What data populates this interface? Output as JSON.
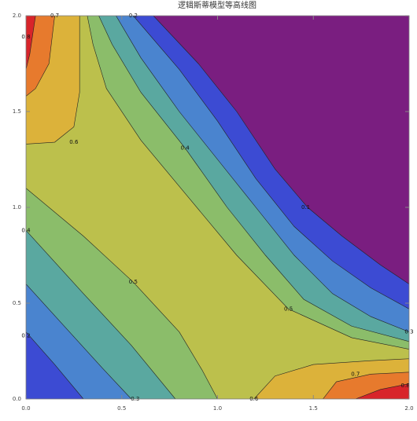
{
  "chart_data": {
    "type": "contour",
    "title": "逻辑斯蒂模型等高线图",
    "xlim": [
      0,
      2
    ],
    "ylim": [
      0,
      2
    ],
    "xticks": [
      {
        "value": 0,
        "label": "0.0"
      },
      0.5,
      {
        "value": 1,
        "label": "1.0"
      },
      1.5,
      {
        "value": 2,
        "label": "2.0"
      }
    ],
    "yticks": [
      {
        "value": 0,
        "label": "0.0"
      },
      0.5,
      {
        "value": 1,
        "label": "1.0"
      },
      1.5,
      {
        "value": 2,
        "label": "2.0"
      }
    ],
    "background_color": "#7a1e80",
    "contours": [
      {
        "color": "#3c4bd3",
        "pieces": [
          {
            "x": [
              0,
              0,
              0.665,
              0.9,
              1.1,
              1.3,
              1.47,
              1.65,
              1.85,
              2,
              2
            ],
            "y": [
              0,
              2,
              2,
              1.75,
              1.5,
              1.2,
              1.0,
              0.85,
              0.7,
              0.6,
              0
            ]
          }
        ]
      },
      {
        "color": "#4a84cf",
        "pieces": [
          {
            "x": [
              0,
              0.15,
              0.3,
              2,
              2,
              1.8,
              1.6,
              1.4,
              1.2,
              1.0,
              0.8,
              0.56,
              0
            ],
            "y": [
              0.35,
              0.18,
              0,
              0,
              0.47,
              0.58,
              0.72,
              0.9,
              1.15,
              1.45,
              1.72,
              2,
              2
            ]
          }
        ]
      },
      {
        "color": "#5aa8a0",
        "pieces": [
          {
            "x": [
              0,
              0.2,
              0.4,
              0.55,
              2,
              2,
              1.8,
              1.6,
              1.4,
              1.2,
              1.0,
              0.8,
              0.6,
              0.47,
              0
            ],
            "y": [
              0.6,
              0.38,
              0.16,
              0,
              0,
              0.35,
              0.43,
              0.55,
              0.75,
              1.0,
              1.25,
              1.5,
              1.78,
              2,
              2
            ]
          }
        ]
      },
      {
        "color": "#8bbd6a",
        "pieces": [
          {
            "x": [
              0,
              0.3,
              0.55,
              0.78,
              2,
              2,
              1.7,
              1.45,
              1.25,
              1.05,
              0.83,
              0.6,
              0.45,
              0.38,
              0
            ],
            "y": [
              0.88,
              0.55,
              0.28,
              0,
              0,
              0.3,
              0.38,
              0.52,
              0.75,
              1.0,
              1.31,
              1.6,
              1.85,
              2,
              2
            ]
          }
        ]
      },
      {
        "color": "#bcc04c",
        "pieces": [
          {
            "x": [
              0,
              0.3,
              0.56,
              0.8,
              0.92,
              1.0,
              2,
              2,
              1.7,
              1.37,
              1.1,
              0.85,
              0.6,
              0.42,
              0.35,
              0.32,
              0
            ],
            "y": [
              1.1,
              0.85,
              0.61,
              0.35,
              0.15,
              0,
              0,
              0.26,
              0.32,
              0.47,
              0.75,
              1.05,
              1.35,
              1.62,
              1.85,
              2,
              2
            ]
          }
        ]
      },
      {
        "color": "#dcb23a",
        "pieces": [
          {
            "x": [
              0,
              0.15,
              0.25,
              0.28,
              0.28,
              0
            ],
            "y": [
              1.33,
              1.34,
              1.42,
              1.6,
              2,
              2
            ]
          },
          {
            "x": [
              1.19,
              1.3,
              1.5,
              1.8,
              2,
              2
            ],
            "y": [
              0,
              0.12,
              0.18,
              0.2,
              0.21,
              0
            ]
          }
        ]
      },
      {
        "color": "#e77a2d",
        "pieces": [
          {
            "x": [
              0,
              0.05,
              0.12,
              0.15,
              0
            ],
            "y": [
              1.58,
              1.62,
              1.75,
              2,
              2
            ]
          },
          {
            "x": [
              1.55,
              1.62,
              1.8,
              2,
              2
            ],
            "y": [
              0,
              0.09,
              0.13,
              0.14,
              0
            ]
          }
        ]
      },
      {
        "color": "#d8242a",
        "pieces": [
          {
            "x": [
              0,
              0.02,
              0.05,
              0
            ],
            "y": [
              1.72,
              1.8,
              2,
              2
            ]
          },
          {
            "x": [
              1.72,
              1.85,
              2,
              2
            ],
            "y": [
              0,
              0.05,
              0.08,
              0
            ]
          }
        ]
      }
    ],
    "contour_labels": [
      {
        "x": 0.15,
        "y": 2,
        "level": 0.7
      },
      {
        "x": 0.56,
        "y": 2,
        "level": 0.2
      },
      {
        "x": 0,
        "y": 1.89,
        "level": 0.8
      },
      {
        "x": 0.25,
        "y": 1.34,
        "level": 0.6
      },
      {
        "x": 0.83,
        "y": 1.31,
        "level": 0.4
      },
      {
        "x": 1.46,
        "y": 1.0,
        "level": 0.1
      },
      {
        "x": 0,
        "y": 0.88,
        "level": 0.4
      },
      {
        "x": 0.56,
        "y": 0.61,
        "level": 0.5
      },
      {
        "x": 1.37,
        "y": 0.47,
        "level": 0.5
      },
      {
        "x": 0,
        "y": 0.33,
        "level": 0.2
      },
      {
        "x": 2,
        "y": 0.35,
        "level": 0.3
      },
      {
        "x": 1.72,
        "y": 0.13,
        "level": 0.7
      },
      {
        "x": 1.98,
        "y": 0.07,
        "level": 0.8
      },
      {
        "x": 0.57,
        "y": 0,
        "level": 0.3
      },
      {
        "x": 1.19,
        "y": 0,
        "level": 0.6
      }
    ]
  }
}
